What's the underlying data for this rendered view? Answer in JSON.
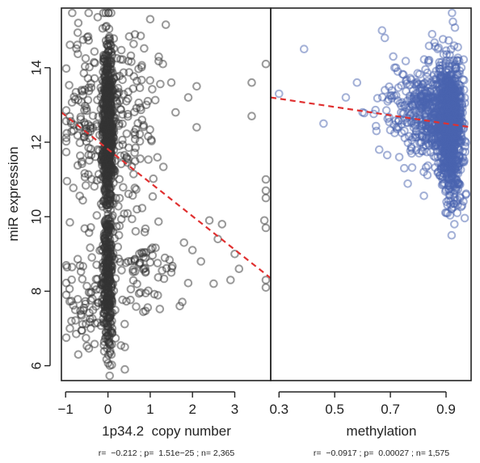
{
  "chart_data": [
    {
      "type": "scatter",
      "title": "",
      "xlabel": "1p34.2  copy number",
      "ylabel": "miR expression",
      "xlim": [
        -1.1,
        3.85
      ],
      "ylim": [
        5.6,
        15.6
      ],
      "x_ticks": [
        "−1",
        "0",
        "1",
        "2",
        "3"
      ],
      "x_tick_values": [
        -1,
        0,
        1,
        2,
        3
      ],
      "y_ticks": [
        "6",
        "8",
        "10",
        "12",
        "14"
      ],
      "y_tick_values": [
        6,
        8,
        10,
        12,
        14
      ],
      "grid": false,
      "point_color": "#333333",
      "regression_line": {
        "x": [
          -1.1,
          3.85
        ],
        "y": [
          12.8,
          8.35
        ],
        "color": "#e03030",
        "style": "dashed"
      },
      "stats": "r=  −0.212 ; p=  1.51e−25 ; n= 2,365",
      "clusters": [
        {
          "x": 0.0,
          "y": 12.4,
          "n": 700,
          "x_spread": 0.06,
          "y_spread": 1.2
        },
        {
          "x": 0.0,
          "y": 8.2,
          "n": 320,
          "x_spread": 0.06,
          "y_spread": 0.9
        },
        {
          "x": -0.55,
          "y": 12.6,
          "n": 120,
          "x_spread": 0.3,
          "y_spread": 1.3
        },
        {
          "x": 0.55,
          "y": 12.6,
          "n": 120,
          "x_spread": 0.3,
          "y_spread": 1.2
        },
        {
          "x": -0.5,
          "y": 7.8,
          "n": 70,
          "x_spread": 0.3,
          "y_spread": 0.8
        },
        {
          "x": 0.7,
          "y": 8.6,
          "n": 90,
          "x_spread": 0.45,
          "y_spread": 0.8
        }
      ],
      "points": [
        {
          "x": 1.0,
          "y": 15.3
        },
        {
          "x": -0.7,
          "y": 15.2
        },
        {
          "x": 1.3,
          "y": 14.1
        },
        {
          "x": 1.5,
          "y": 13.6
        },
        {
          "x": 2.1,
          "y": 13.5
        },
        {
          "x": 1.9,
          "y": 13.2
        },
        {
          "x": 1.6,
          "y": 12.8
        },
        {
          "x": 3.4,
          "y": 13.6
        },
        {
          "x": 3.75,
          "y": 14.1
        },
        {
          "x": 3.4,
          "y": 12.7
        },
        {
          "x": 2.1,
          "y": 12.4
        },
        {
          "x": 3.75,
          "y": 11.0
        },
        {
          "x": 3.75,
          "y": 10.7
        },
        {
          "x": 3.75,
          "y": 10.5
        },
        {
          "x": 3.7,
          "y": 9.9
        },
        {
          "x": 3.75,
          "y": 9.7
        },
        {
          "x": 2.4,
          "y": 9.9
        },
        {
          "x": 2.7,
          "y": 9.8
        },
        {
          "x": 2.6,
          "y": 9.4
        },
        {
          "x": 2.0,
          "y": 9.1
        },
        {
          "x": 2.2,
          "y": 8.8
        },
        {
          "x": 3.0,
          "y": 9.0
        },
        {
          "x": 3.1,
          "y": 8.6
        },
        {
          "x": 2.9,
          "y": 8.3
        },
        {
          "x": 2.5,
          "y": 8.2
        },
        {
          "x": 3.8,
          "y": 8.3
        },
        {
          "x": 3.75,
          "y": 8.1
        },
        {
          "x": 1.5,
          "y": 8.5
        },
        {
          "x": 1.7,
          "y": 7.6
        },
        {
          "x": 0.4,
          "y": 6.5
        },
        {
          "x": 0.4,
          "y": 5.9
        },
        {
          "x": -0.7,
          "y": 6.3
        },
        {
          "x": -0.9,
          "y": 7.0
        }
      ]
    },
    {
      "type": "scatter",
      "title": "",
      "xlabel": "methylation",
      "ylabel": "",
      "xlim": [
        0.27,
        0.99
      ],
      "ylim": [
        5.6,
        15.6
      ],
      "x_ticks": [
        "0.3",
        "0.5",
        "0.7",
        "0.9"
      ],
      "x_tick_values": [
        0.3,
        0.5,
        0.7,
        0.9
      ],
      "grid": false,
      "point_color": "#4a63b0",
      "regression_line": {
        "x": [
          0.27,
          0.99
        ],
        "y": [
          13.2,
          12.4
        ],
        "color": "#e03030",
        "style": "dashed"
      },
      "stats": "r=  −0.0917 ; p=  0.00027 ; n= 1,575",
      "clusters": [
        {
          "x": 0.915,
          "y": 12.5,
          "n": 900,
          "x_spread": 0.02,
          "y_spread": 0.8
        },
        {
          "x": 0.86,
          "y": 12.7,
          "n": 350,
          "x_spread": 0.04,
          "y_spread": 0.65
        },
        {
          "x": 0.78,
          "y": 12.8,
          "n": 150,
          "x_spread": 0.06,
          "y_spread": 0.6
        },
        {
          "x": 0.93,
          "y": 11.0,
          "n": 60,
          "x_spread": 0.02,
          "y_spread": 0.6
        }
      ],
      "points": [
        {
          "x": 0.3,
          "y": 13.3
        },
        {
          "x": 0.39,
          "y": 14.5
        },
        {
          "x": 0.46,
          "y": 12.5
        },
        {
          "x": 0.54,
          "y": 13.2
        },
        {
          "x": 0.58,
          "y": 13.6
        },
        {
          "x": 0.6,
          "y": 12.8
        },
        {
          "x": 0.65,
          "y": 12.3
        },
        {
          "x": 0.66,
          "y": 11.8
        },
        {
          "x": 0.67,
          "y": 15.0
        },
        {
          "x": 0.68,
          "y": 14.8
        },
        {
          "x": 0.71,
          "y": 14.3
        },
        {
          "x": 0.72,
          "y": 14.0
        },
        {
          "x": 0.85,
          "y": 14.9
        },
        {
          "x": 0.87,
          "y": 14.5
        },
        {
          "x": 0.75,
          "y": 11.3
        },
        {
          "x": 0.82,
          "y": 11.2
        },
        {
          "x": 0.92,
          "y": 9.5
        },
        {
          "x": 0.93,
          "y": 9.8
        },
        {
          "x": 0.94,
          "y": 10.1
        }
      ]
    }
  ]
}
